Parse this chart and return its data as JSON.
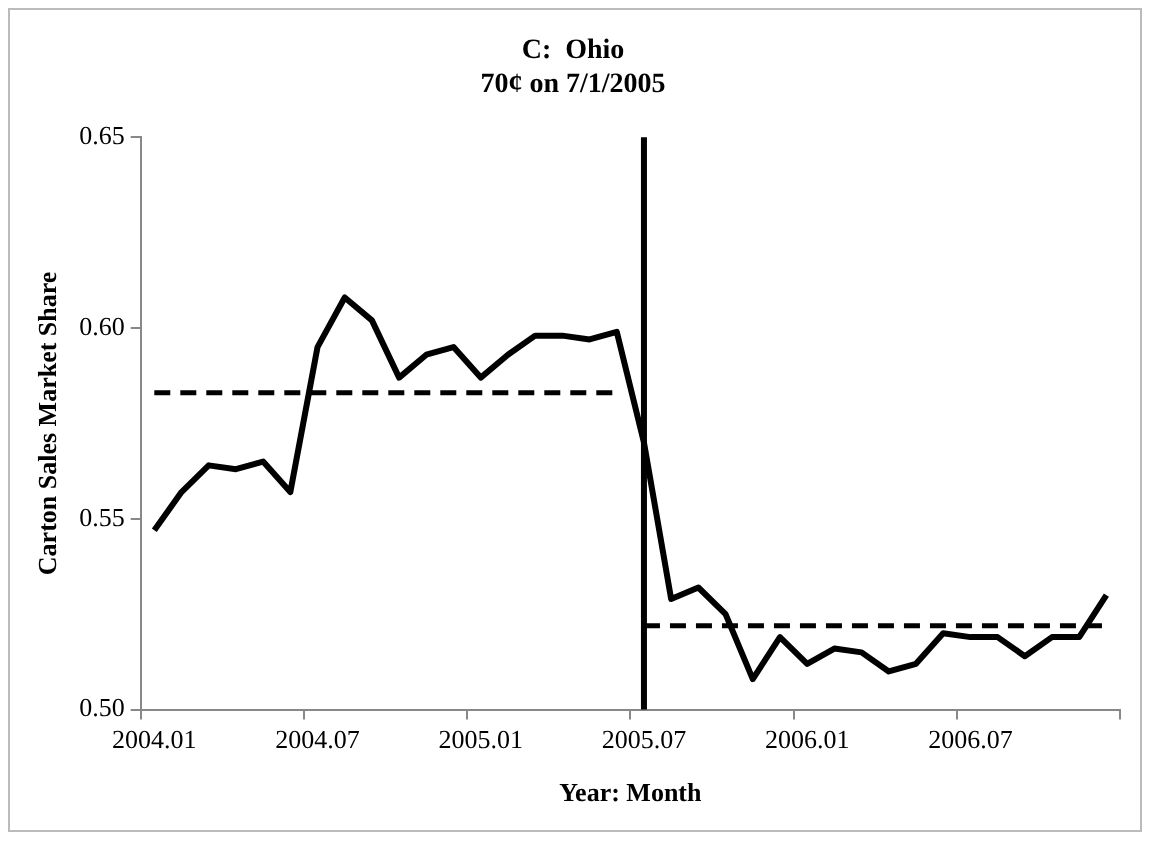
{
  "chart_data": {
    "type": "line",
    "title": "C:  Ohio",
    "subtitle": "70¢ on 7/1/2005",
    "xlabel": "Year: Month",
    "ylabel": "Carton Sales Market Share",
    "categories": [
      "2004.01",
      null,
      null,
      null,
      null,
      null,
      "2004.07",
      null,
      null,
      null,
      null,
      null,
      "2005.01",
      null,
      null,
      null,
      null,
      null,
      "2005.07",
      null,
      null,
      null,
      null,
      null,
      "2006.01",
      null,
      null,
      null,
      null,
      null,
      "2006.07",
      null,
      null,
      null,
      null,
      null
    ],
    "series": [
      {
        "color": "#000000",
        "line_style": "solid",
        "values": [
          0.547,
          0.557,
          0.564,
          0.563,
          0.565,
          0.557,
          0.595,
          0.608,
          0.602,
          0.587,
          0.593,
          0.595,
          0.587,
          0.593,
          0.598,
          0.598,
          0.597,
          0.599,
          0.57,
          0.529,
          0.532,
          0.525,
          0.508,
          0.519,
          0.512,
          0.516,
          0.515,
          0.51,
          0.512,
          0.52,
          0.519,
          0.519,
          0.514,
          0.519,
          0.519,
          0.53
        ]
      },
      {
        "color": "#000000",
        "line_style": "dashed",
        "values": [
          0.583,
          0.583,
          0.583,
          0.583,
          0.583,
          0.583,
          0.583,
          0.583,
          0.583,
          0.583,
          0.583,
          0.583,
          0.583,
          0.583,
          0.583,
          0.583,
          0.583,
          0.583,
          null,
          null,
          null,
          null,
          null,
          null,
          null,
          null,
          null,
          null,
          null,
          null,
          null,
          null,
          null,
          null,
          null,
          null
        ]
      },
      {
        "color": "#000000",
        "line_style": "dashed",
        "values": [
          null,
          null,
          null,
          null,
          null,
          null,
          null,
          null,
          null,
          null,
          null,
          null,
          null,
          null,
          null,
          null,
          null,
          null,
          0.522,
          0.522,
          0.522,
          0.522,
          0.522,
          0.522,
          0.522,
          0.522,
          0.522,
          0.522,
          0.522,
          0.522,
          0.522,
          0.522,
          0.522,
          0.522,
          0.522,
          0.522
        ]
      }
    ],
    "ylim": [
      0.5,
      0.65
    ],
    "yticks": [
      {
        "value": 0.5,
        "label": "0.50"
      },
      0.55,
      {
        "value": 0.6,
        "label": "0.60"
      },
      0.65
    ],
    "ref_lines": [
      {
        "axis": "x",
        "value": "2005.07",
        "color": "#000000"
      }
    ],
    "grid": false,
    "legend": false,
    "marker": "none"
  }
}
